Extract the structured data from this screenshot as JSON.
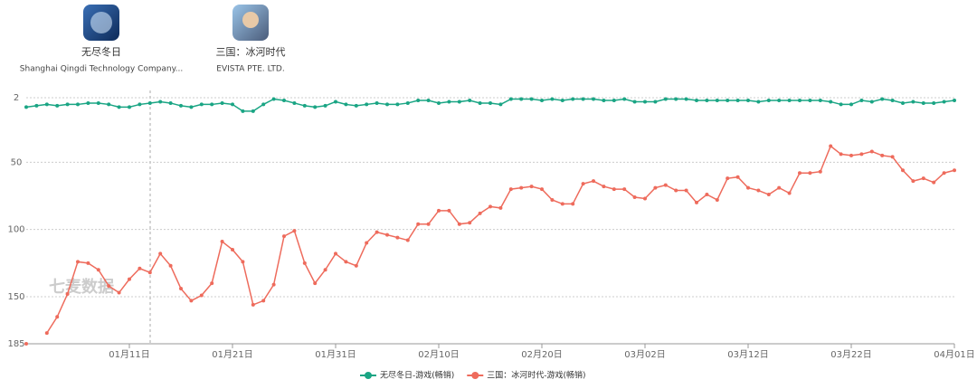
{
  "apps": [
    {
      "name": "无尽冬日",
      "developer": "Shanghai Qingdi Technology Company..."
    },
    {
      "name": "三国：冰河时代",
      "developer": "EVISTA PTE. LTD."
    }
  ],
  "watermark": "七麦数据",
  "chart_data": {
    "type": "line",
    "inverted": true,
    "grid": true,
    "legend": "bottom",
    "categories": [
      null,
      null,
      null,
      null,
      null,
      null,
      null,
      null,
      null,
      null,
      "01月11日",
      null,
      null,
      null,
      null,
      null,
      null,
      null,
      null,
      null,
      "01月21日",
      null,
      null,
      null,
      null,
      null,
      null,
      null,
      null,
      null,
      "01月31日",
      null,
      null,
      null,
      null,
      null,
      null,
      null,
      null,
      null,
      "02月10日",
      null,
      null,
      null,
      null,
      null,
      null,
      null,
      null,
      null,
      "02月20日",
      null,
      null,
      null,
      null,
      null,
      null,
      null,
      null,
      null,
      "03月02日",
      null,
      null,
      null,
      null,
      null,
      null,
      null,
      null,
      null,
      "03月12日",
      null,
      null,
      null,
      null,
      null,
      null,
      null,
      null,
      null,
      "03月22日",
      null,
      null,
      null,
      null,
      null,
      null,
      null,
      null,
      null,
      "04月01日"
    ],
    "ylim": [
      2,
      185
    ],
    "yticks": [
      2,
      50,
      100,
      150,
      185
    ],
    "series": [
      {
        "name": "无尽冬日-游戏(畅销)",
        "color": "#1aa584",
        "values": [
          9,
          8,
          7,
          8,
          7,
          7,
          6,
          6,
          7,
          9,
          9,
          7,
          6,
          5,
          6,
          8,
          9,
          7,
          7,
          6,
          7,
          12,
          12,
          7,
          3,
          4,
          6,
          8,
          9,
          8,
          5,
          7,
          8,
          7,
          6,
          7,
          7,
          6,
          4,
          4,
          6,
          5,
          5,
          4,
          6,
          6,
          7,
          3,
          3,
          3,
          4,
          3,
          4,
          3,
          3,
          3,
          4,
          4,
          3,
          5,
          5,
          5,
          3,
          3,
          3,
          4,
          4,
          4,
          4,
          4,
          4,
          5,
          4,
          4,
          4,
          4,
          4,
          4,
          5,
          7,
          7,
          4,
          5,
          3,
          4,
          6,
          5,
          6,
          6,
          5,
          4
        ]
      },
      {
        "name": "三国：冰河时代-游戏(畅销)",
        "color": "#ee6b5c",
        "values": [
          185,
          null,
          177,
          165,
          148,
          124,
          125,
          130,
          142,
          147,
          137,
          129,
          132,
          118,
          127,
          144,
          153,
          149,
          140,
          109,
          115,
          124,
          156,
          153,
          141,
          105,
          101,
          125,
          140,
          130,
          118,
          124,
          127,
          110,
          102,
          104,
          106,
          108,
          96,
          96,
          86,
          86,
          96,
          95,
          88,
          83,
          84,
          70,
          69,
          68,
          70,
          78,
          81,
          81,
          66,
          64,
          68,
          70,
          70,
          76,
          77,
          69,
          67,
          71,
          71,
          80,
          74,
          78,
          62,
          61,
          69,
          71,
          74,
          69,
          73,
          58,
          58,
          57,
          38,
          44,
          45,
          44,
          42,
          45,
          46,
          56,
          64,
          62,
          65,
          58,
          56
        ]
      }
    ]
  }
}
